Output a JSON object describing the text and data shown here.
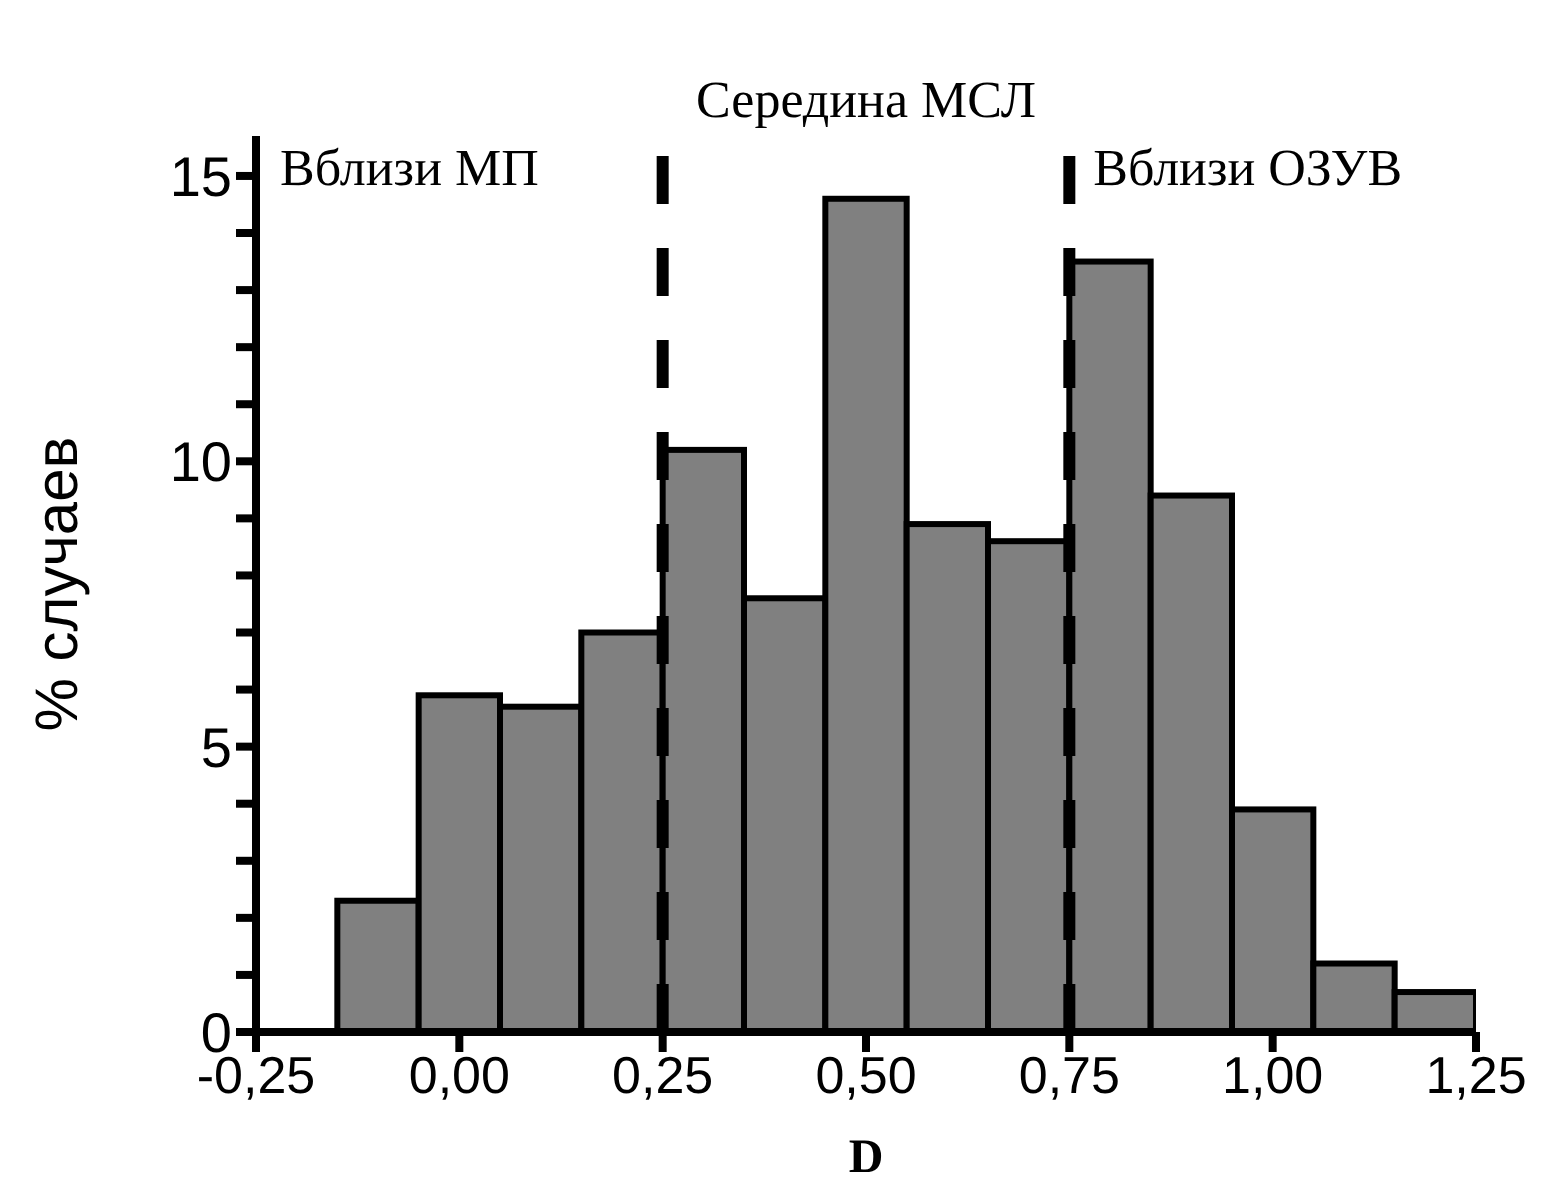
{
  "chart_data": {
    "type": "histogram",
    "xlabel": "D",
    "ylabel": "% случаев",
    "bins": [
      -0.25,
      -0.15,
      -0.05,
      0.05,
      0.15,
      0.25,
      0.35,
      0.45,
      0.55,
      0.65,
      0.75,
      0.85,
      0.95,
      1.05,
      1.15,
      1.25
    ],
    "values": [
      0,
      2.3,
      5.9,
      5.7,
      7.0,
      10.2,
      7.6,
      14.6,
      8.9,
      8.6,
      13.5,
      9.4,
      3.9,
      1.2,
      0.7
    ],
    "color": "#808080",
    "xlim": [
      -0.25,
      1.25
    ],
    "xticks": [
      {
        "value": -0.25,
        "label": "-0,25"
      },
      {
        "value": 0,
        "label": "0,00"
      },
      {
        "value": 0.25,
        "label": "0,25"
      },
      {
        "value": 0.5,
        "label": "0,50"
      },
      {
        "value": 0.75,
        "label": "0,75"
      },
      {
        "value": 1,
        "label": "1,00"
      },
      {
        "value": 1.25,
        "label": "1,25"
      }
    ],
    "ylim": [
      0,
      15.7
    ],
    "yticks": [
      0,
      {
        "value": 1,
        "label": null
      },
      {
        "value": 2,
        "label": null
      },
      {
        "value": 3,
        "label": null
      },
      {
        "value": 4,
        "label": null
      },
      5,
      {
        "value": 6,
        "label": null
      },
      {
        "value": 7,
        "label": null
      },
      {
        "value": 8,
        "label": null
      },
      {
        "value": 9,
        "label": null
      },
      10,
      {
        "value": 11,
        "label": null
      },
      {
        "value": 12,
        "label": null
      },
      {
        "value": 13,
        "label": null
      },
      {
        "value": 14,
        "label": null
      },
      15
    ],
    "ref_lines": [
      {
        "axis": "x",
        "value": 0.25,
        "color": "#000000",
        "line_style": "dashed"
      },
      {
        "axis": "x",
        "value": 0.75,
        "color": "#000000",
        "line_style": "dashed"
      }
    ],
    "annotations": [
      "Вблизи МП",
      "Середина МСЛ",
      "Вблизи ОЗУВ"
    ],
    "grid": false,
    "legend": false
  }
}
